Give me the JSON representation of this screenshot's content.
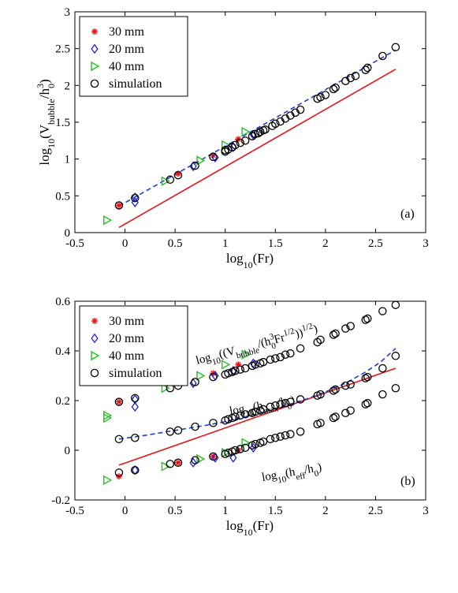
{
  "chart_data": [
    {
      "type": "scatter",
      "panel_label": "(a)",
      "xlabel": {
        "base": "log",
        "sub": "10",
        "rest": "(Fr)"
      },
      "ylabel": {
        "a": "log",
        "b": "10",
        "c": "(V",
        "d": "bubble",
        "e": "/h",
        "f": "3",
        "g": "0",
        "h": ")"
      },
      "xlim": [
        -0.5,
        3
      ],
      "ylim": [
        0,
        3
      ],
      "xticks": [
        "-0.5",
        "0",
        "0.5",
        "1",
        "1.5",
        "2",
        "2.5",
        "3"
      ],
      "yticks": [
        "0",
        "0.5",
        "1",
        "1.5",
        "2",
        "2.5",
        "3"
      ],
      "legend": [
        "30 mm",
        "20 mm",
        "40 mm",
        "simulation"
      ],
      "legend_position": "top-left",
      "colors": {
        "mm30": "#e8141a",
        "mm20": "#1f1fd0",
        "mm40": "#22c122",
        "sim": "#000000",
        "fit_dashed": "#1f3fd0",
        "fit_solid": "#e8141a"
      },
      "series": {
        "mm30": {
          "x": [
            -0.06,
            0.53,
            0.88,
            1.13
          ],
          "y": [
            0.37,
            0.8,
            1.05,
            1.27
          ]
        },
        "mm20": {
          "x": [
            0.1,
            0.1,
            0.68,
            0.9,
            1.08,
            1.28
          ],
          "y": [
            0.41,
            0.48,
            0.9,
            1.02,
            1.16,
            1.33
          ]
        },
        "mm40": {
          "x": [
            -0.18,
            0.4,
            0.75,
            1.0,
            1.2
          ],
          "y": [
            0.17,
            0.7,
            0.98,
            1.19,
            1.37
          ]
        },
        "sim": {
          "x": [
            -0.06,
            0.1,
            0.45,
            0.53,
            0.7,
            0.88,
            1.0,
            1.0,
            1.03,
            1.07,
            1.1,
            1.15,
            1.2,
            1.27,
            1.3,
            1.33,
            1.35,
            1.38,
            1.4,
            1.47,
            1.5,
            1.55,
            1.6,
            1.65,
            1.7,
            1.75,
            1.92,
            1.95,
            2.0,
            2.08,
            2.1,
            2.2,
            2.25,
            2.3,
            2.4,
            2.42,
            2.57,
            2.7
          ],
          "y": [
            0.37,
            0.47,
            0.72,
            0.78,
            0.91,
            1.03,
            1.1,
            1.12,
            1.13,
            1.16,
            1.19,
            1.22,
            1.25,
            1.31,
            1.34,
            1.35,
            1.37,
            1.39,
            1.4,
            1.45,
            1.48,
            1.51,
            1.55,
            1.59,
            1.63,
            1.67,
            1.82,
            1.84,
            1.87,
            1.95,
            1.97,
            2.06,
            2.1,
            2.13,
            2.21,
            2.24,
            2.4,
            2.52
          ]
        }
      },
      "lines": {
        "fit_dashed": {
          "x": [
            -0.06,
            2.7
          ],
          "y": [
            0.36,
            2.48
          ]
        },
        "fit_solid": {
          "x": [
            -0.06,
            2.7
          ],
          "y": [
            0.07,
            2.22
          ]
        }
      }
    },
    {
      "type": "scatter",
      "panel_label": "(b)",
      "xlabel": {
        "base": "log",
        "sub": "10",
        "rest": "(Fr)"
      },
      "xlim": [
        -0.5,
        3
      ],
      "ylim": [
        -0.2,
        0.6
      ],
      "xticks": [
        "-0.5",
        "0",
        "0.5",
        "1",
        "1.5",
        "2",
        "2.5",
        "3"
      ],
      "yticks": [
        "-0.2",
        "0",
        "0.2",
        "0.4",
        "0.6"
      ],
      "legend": [
        "30 mm",
        "20 mm",
        "40 mm",
        "simulation"
      ],
      "legend_position": "top-left",
      "annotations": {
        "top": {
          "a": "log",
          "b": "10",
          "c": "((V",
          "d": "bubble",
          "e": "/(h",
          "f": "3",
          "g": "0",
          "h": "Fr",
          "i": "1/2",
          "j": "))",
          "k": "1/2",
          "l": ")"
        },
        "mid": {
          "a": "log",
          "b": "10",
          "c": "(h",
          "d": "max",
          "e": "/h",
          "f": "0",
          "g": ")"
        },
        "bot": {
          "a": "log",
          "b": "10",
          "c": "(h",
          "d": "eff",
          "e": "/h",
          "f": "0",
          "g": ")"
        }
      },
      "series": {
        "mm30": {
          "x": [
            -0.06,
            0.53,
            0.88,
            1.13,
            -0.06,
            0.53,
            0.88,
            1.13
          ],
          "y": [
            0.195,
            0.27,
            0.31,
            0.345,
            -0.105,
            -0.05,
            -0.025,
            0.0
          ]
        },
        "mm20": {
          "x": [
            0.1,
            0.1,
            0.68,
            0.9,
            1.08,
            1.28,
            0.1,
            0.68,
            0.9,
            1.08,
            1.28
          ],
          "y": [
            0.205,
            0.175,
            0.27,
            0.3,
            0.32,
            0.35,
            -0.08,
            -0.05,
            -0.03,
            -0.03,
            0.01
          ]
        },
        "mm40": {
          "x": [
            -0.18,
            -0.18,
            0.4,
            0.75,
            1.0,
            1.2,
            -0.18,
            0.4,
            0.75,
            1.0,
            1.2
          ],
          "y": [
            0.14,
            0.13,
            0.25,
            0.3,
            0.345,
            0.385,
            -0.12,
            -0.065,
            -0.035,
            -0.01,
            0.03
          ]
        },
        "sim_top": {
          "x": [
            -0.06,
            0.1,
            0.45,
            0.53,
            0.7,
            0.88,
            1.0,
            1.03,
            1.07,
            1.1,
            1.15,
            1.2,
            1.27,
            1.3,
            1.35,
            1.38,
            1.45,
            1.5,
            1.55,
            1.6,
            1.65,
            1.75,
            1.92,
            1.95,
            2.08,
            2.1,
            2.2,
            2.25,
            2.4,
            2.42,
            2.57,
            2.7
          ],
          "y": [
            0.195,
            0.21,
            0.25,
            0.26,
            0.275,
            0.295,
            0.305,
            0.31,
            0.315,
            0.32,
            0.325,
            0.33,
            0.34,
            0.345,
            0.35,
            0.355,
            0.365,
            0.37,
            0.375,
            0.385,
            0.39,
            0.41,
            0.435,
            0.445,
            0.465,
            0.47,
            0.49,
            0.5,
            0.525,
            0.53,
            0.56,
            0.585
          ]
        },
        "sim_mid": {
          "x": [
            -0.06,
            0.1,
            0.45,
            0.53,
            0.7,
            0.88,
            1.0,
            1.03,
            1.07,
            1.1,
            1.15,
            1.2,
            1.27,
            1.3,
            1.35,
            1.38,
            1.45,
            1.5,
            1.55,
            1.6,
            1.65,
            1.75,
            1.92,
            1.95,
            2.08,
            2.1,
            2.2,
            2.25,
            2.4,
            2.42,
            2.57,
            2.7
          ],
          "y": [
            0.045,
            0.05,
            0.075,
            0.08,
            0.095,
            0.11,
            0.12,
            0.125,
            0.13,
            0.135,
            0.14,
            0.145,
            0.15,
            0.155,
            0.16,
            0.165,
            0.175,
            0.18,
            0.185,
            0.19,
            0.195,
            0.205,
            0.22,
            0.225,
            0.24,
            0.245,
            0.26,
            0.265,
            0.29,
            0.295,
            0.33,
            0.38
          ]
        },
        "sim_bot": {
          "x": [
            -0.06,
            0.1,
            0.45,
            0.53,
            0.7,
            0.88,
            1.0,
            1.03,
            1.07,
            1.1,
            1.15,
            1.2,
            1.27,
            1.3,
            1.35,
            1.38,
            1.45,
            1.5,
            1.55,
            1.6,
            1.65,
            1.75,
            1.92,
            1.95,
            2.08,
            2.1,
            2.2,
            2.25,
            2.4,
            2.42,
            2.57,
            2.7
          ],
          "y": [
            -0.09,
            -0.08,
            -0.055,
            -0.05,
            -0.04,
            -0.025,
            -0.015,
            -0.01,
            -0.005,
            0.0,
            0.005,
            0.01,
            0.02,
            0.025,
            0.03,
            0.035,
            0.045,
            0.05,
            0.055,
            0.06,
            0.065,
            0.075,
            0.105,
            0.11,
            0.13,
            0.135,
            0.15,
            0.16,
            0.185,
            0.19,
            0.225,
            0.25
          ]
        }
      },
      "lines": {
        "fit_dashed": {
          "x": [
            -0.06,
            0.2,
            0.5,
            0.8,
            1.0,
            1.2,
            1.4,
            1.6,
            1.8,
            2.0,
            2.2,
            2.4,
            2.55,
            2.7
          ],
          "y": [
            0.045,
            0.06,
            0.08,
            0.1,
            0.115,
            0.135,
            0.155,
            0.18,
            0.205,
            0.235,
            0.27,
            0.315,
            0.355,
            0.41
          ]
        },
        "fit_solid": {
          "x": [
            -0.06,
            2.7
          ],
          "y": [
            -0.06,
            0.33
          ]
        }
      }
    }
  ]
}
